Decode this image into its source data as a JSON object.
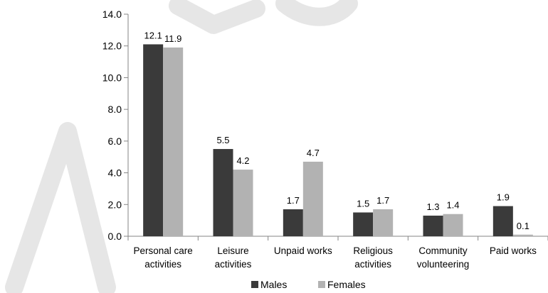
{
  "chart_data": {
    "type": "bar",
    "title": "",
    "xlabel": "",
    "ylabel": "",
    "ylim": [
      0,
      14
    ],
    "yticks": [
      "0.0",
      "2.0",
      "4.0",
      "6.0",
      "8.0",
      "10.0",
      "12.0",
      "14.0"
    ],
    "categories": [
      [
        "Personal care",
        "activities"
      ],
      [
        "Leisure",
        "activities"
      ],
      [
        "Unpaid works"
      ],
      [
        "Religious",
        "activities"
      ],
      [
        "Community",
        "volunteering"
      ],
      [
        "Paid works"
      ]
    ],
    "series": [
      {
        "name": "Males",
        "color": "#3a3a3a",
        "values": [
          12.1,
          5.5,
          1.7,
          1.5,
          1.3,
          1.9
        ],
        "labels": [
          "12.1",
          "5.5",
          "1.7",
          "1.5",
          "1.3",
          "1.9"
        ]
      },
      {
        "name": "Females",
        "color": "#b2b2b2",
        "values": [
          11.9,
          4.2,
          4.7,
          1.7,
          1.4,
          0.1
        ],
        "labels": [
          "11.9",
          "4.2",
          "4.7",
          "1.7",
          "1.4",
          "0.1"
        ]
      }
    ],
    "grid": false,
    "legend_position": "bottom-center"
  }
}
